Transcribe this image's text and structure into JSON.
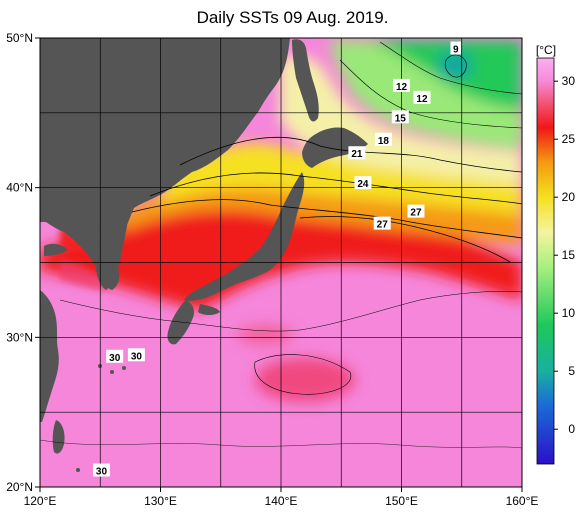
{
  "title": "Daily SSTs 09 Aug. 2019.",
  "map": {
    "lon_range": [
      120,
      160
    ],
    "lat_range": [
      20,
      50
    ],
    "x_ticks": [
      {
        "value": 120,
        "label": "120°E"
      },
      {
        "value": 130,
        "label": "130°E"
      },
      {
        "value": 140,
        "label": "140°E"
      },
      {
        "value": 150,
        "label": "150°E"
      },
      {
        "value": 160,
        "label": "160°E"
      }
    ],
    "y_ticks": [
      {
        "value": 50,
        "label": "50°N"
      },
      {
        "value": 40,
        "label": "40°N"
      },
      {
        "value": 30,
        "label": "30°N"
      },
      {
        "value": 20,
        "label": "20°N"
      }
    ],
    "grid_lons": [
      125,
      130,
      135,
      140,
      145,
      150,
      155
    ],
    "grid_lats": [
      45,
      40,
      35,
      30,
      25
    ],
    "grid": true,
    "land_color": "#555555"
  },
  "contour_labels": [
    {
      "text": "9",
      "lon": 154.5,
      "lat": 49.3
    },
    {
      "text": "12",
      "lon": 150.0,
      "lat": 46.8
    },
    {
      "text": "12",
      "lon": 151.7,
      "lat": 46.0
    },
    {
      "text": "15",
      "lon": 149.9,
      "lat": 44.7
    },
    {
      "text": "18",
      "lon": 148.5,
      "lat": 43.2
    },
    {
      "text": "21",
      "lon": 146.3,
      "lat": 42.3
    },
    {
      "text": "24",
      "lon": 146.8,
      "lat": 40.3
    },
    {
      "text": "27",
      "lon": 151.2,
      "lat": 38.4
    },
    {
      "text": "27",
      "lon": 148.4,
      "lat": 37.6
    },
    {
      "text": "30",
      "lon": 126.2,
      "lat": 28.7
    },
    {
      "text": "30",
      "lon": 128.0,
      "lat": 28.8
    },
    {
      "text": "30",
      "lon": 125.1,
      "lat": 21.1
    }
  ],
  "colorbar": {
    "unit": "[°C]",
    "range": [
      -3,
      32
    ],
    "ticks": [
      {
        "value": 30,
        "label": "30"
      },
      {
        "value": 25,
        "label": "25"
      },
      {
        "value": 20,
        "label": "20"
      },
      {
        "value": 15,
        "label": "15"
      },
      {
        "value": 10,
        "label": "10"
      },
      {
        "value": 5,
        "label": "5"
      },
      {
        "value": 0,
        "label": "0"
      }
    ],
    "stops": [
      {
        "value": -3,
        "color": "#2a10c8"
      },
      {
        "value": 2,
        "color": "#1a6ad8"
      },
      {
        "value": 5,
        "color": "#19b0a0"
      },
      {
        "value": 9,
        "color": "#1ec85a"
      },
      {
        "value": 14,
        "color": "#a8f080"
      },
      {
        "value": 17,
        "color": "#f4f4a0"
      },
      {
        "value": 20,
        "color": "#f5e020"
      },
      {
        "value": 23,
        "color": "#f59a10"
      },
      {
        "value": 26,
        "color": "#f01818"
      },
      {
        "value": 28,
        "color": "#f25070"
      },
      {
        "value": 30,
        "color": "#f58ad8"
      },
      {
        "value": 32,
        "color": "#fbb0f0"
      }
    ]
  }
}
